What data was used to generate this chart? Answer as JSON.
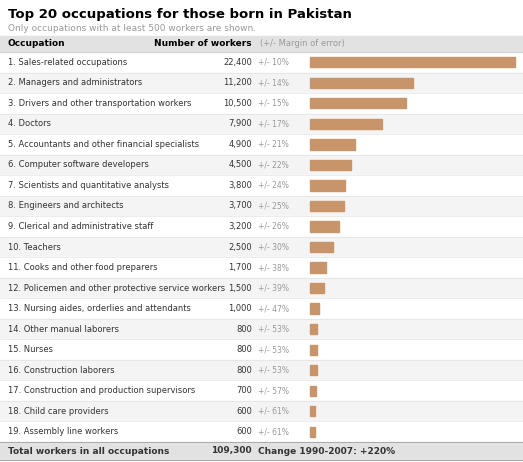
{
  "title": "Top 20 occupations for those born in Pakistan",
  "subtitle": "Only occupations with at least 500 workers are shown.",
  "col_header_occupation": "Occupation",
  "col_header_workers": "Number of workers",
  "col_header_margin": "(+/- Margin of error)",
  "footer_label": "Total workers in all occupations",
  "footer_value": "109,300",
  "footer_change": "Change 1990-2007: +220%",
  "rows": [
    {
      "rank": 1,
      "occupation": "Sales-related occupations",
      "workers": "22,400",
      "margin": "+/- 10%",
      "bar_val": 22400
    },
    {
      "rank": 2,
      "occupation": "Managers and administrators",
      "workers": "11,200",
      "margin": "+/- 14%",
      "bar_val": 11200
    },
    {
      "rank": 3,
      "occupation": "Drivers and other transportation workers",
      "workers": "10,500",
      "margin": "+/- 15%",
      "bar_val": 10500
    },
    {
      "rank": 4,
      "occupation": "Doctors",
      "workers": "7,900",
      "margin": "+/- 17%",
      "bar_val": 7900
    },
    {
      "rank": 5,
      "occupation": "Accountants and other financial specialists",
      "workers": "4,900",
      "margin": "+/- 21%",
      "bar_val": 4900
    },
    {
      "rank": 6,
      "occupation": "Computer software developers",
      "workers": "4,500",
      "margin": "+/- 22%",
      "bar_val": 4500
    },
    {
      "rank": 7,
      "occupation": "Scientists and quantitative analysts",
      "workers": "3,800",
      "margin": "+/- 24%",
      "bar_val": 3800
    },
    {
      "rank": 8,
      "occupation": "Engineers and architects",
      "workers": "3,700",
      "margin": "+/- 25%",
      "bar_val": 3700
    },
    {
      "rank": 9,
      "occupation": "Clerical and administrative staff",
      "workers": "3,200",
      "margin": "+/- 26%",
      "bar_val": 3200
    },
    {
      "rank": 10,
      "occupation": "Teachers",
      "workers": "2,500",
      "margin": "+/- 30%",
      "bar_val": 2500
    },
    {
      "rank": 11,
      "occupation": "Cooks and other food preparers",
      "workers": "1,700",
      "margin": "+/- 38%",
      "bar_val": 1700
    },
    {
      "rank": 12,
      "occupation": "Policemen and other protective service workers",
      "workers": "1,500",
      "margin": "+/- 39%",
      "bar_val": 1500
    },
    {
      "rank": 13,
      "occupation": "Nursing aides, orderlies and attendants",
      "workers": "1,000",
      "margin": "+/- 47%",
      "bar_val": 1000
    },
    {
      "rank": 14,
      "occupation": "Other manual laborers",
      "workers": "800",
      "margin": "+/- 53%",
      "bar_val": 800
    },
    {
      "rank": 15,
      "occupation": "Nurses",
      "workers": "800",
      "margin": "+/- 53%",
      "bar_val": 800
    },
    {
      "rank": 16,
      "occupation": "Construction laborers",
      "workers": "800",
      "margin": "+/- 53%",
      "bar_val": 800
    },
    {
      "rank": 17,
      "occupation": "Construction and production supervisors",
      "workers": "700",
      "margin": "+/- 57%",
      "bar_val": 700
    },
    {
      "rank": 18,
      "occupation": "Child care providers",
      "workers": "600",
      "margin": "+/- 61%",
      "bar_val": 600
    },
    {
      "rank": 19,
      "occupation": "Assembly line workers",
      "workers": "600",
      "margin": "+/- 61%",
      "bar_val": 600
    }
  ],
  "bar_color": "#c8946a",
  "bar_max": 22400,
  "bg_color": "#ffffff",
  "header_bg": "#e2e2e2",
  "row_alt_bg": "#f4f4f4",
  "title_color": "#000000",
  "subtitle_color": "#999999",
  "text_color": "#333333",
  "margin_color": "#999999",
  "header_text_color": "#000000",
  "font_size_title": 9.5,
  "font_size_subtitle": 6.5,
  "font_size_header": 6.5,
  "font_size_row": 6.0,
  "font_size_footer": 6.5
}
